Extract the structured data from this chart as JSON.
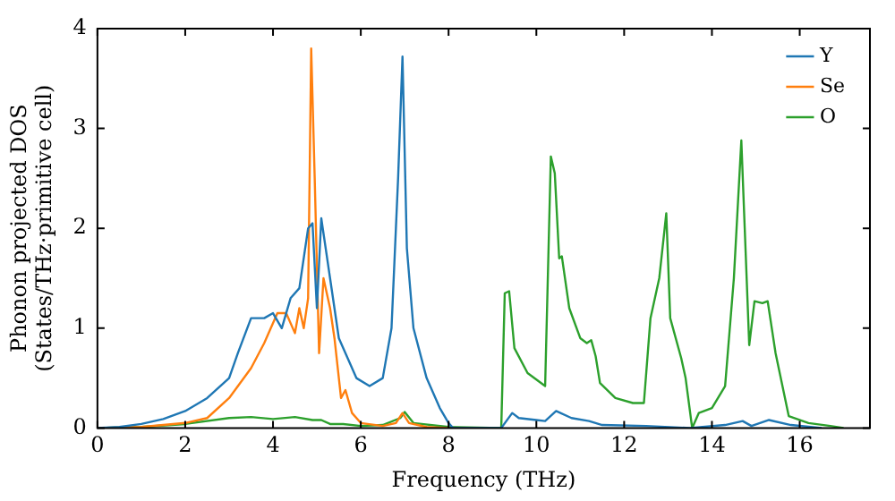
{
  "chart_data": {
    "type": "line",
    "xlabel": "Frequency (THz)",
    "ylabel": "Phonon projected DOS\n(States/THz·primitive cell)",
    "xlim": [
      0,
      17.6
    ],
    "xticks": [
      0,
      2,
      4,
      6,
      8,
      10,
      12,
      14,
      16
    ],
    "ylim": [
      0,
      4
    ],
    "yticks": [
      0,
      1,
      2,
      3,
      4
    ],
    "grid": false,
    "legend": "top right",
    "marker": "none",
    "line_style": "solid",
    "series": [
      {
        "name": "Y",
        "color": "#1f77b4",
        "x": [
          0,
          0.5,
          1,
          1.5,
          2,
          2.5,
          3,
          3.2,
          3.5,
          3.8,
          4,
          4.2,
          4.4,
          4.6,
          4.8,
          4.9,
          5.0,
          5.1,
          5.3,
          5.5,
          5.7,
          5.9,
          6.2,
          6.5,
          6.7,
          6.85,
          6.95,
          7.05,
          7.2,
          7.5,
          7.8,
          8.0,
          8.1,
          9.2,
          9.45,
          9.6,
          10,
          10.2,
          10.45,
          10.8,
          11.2,
          11.5,
          12.5,
          13.5,
          14.3,
          14.7,
          14.9,
          15.3,
          15.8,
          16.5
        ],
        "values": [
          0,
          0.01,
          0.04,
          0.09,
          0.17,
          0.3,
          0.5,
          0.75,
          1.1,
          1.1,
          1.15,
          1.0,
          1.3,
          1.4,
          2.0,
          2.05,
          1.2,
          2.1,
          1.5,
          0.9,
          0.7,
          0.5,
          0.42,
          0.5,
          1.0,
          2.5,
          3.72,
          1.8,
          1.0,
          0.5,
          0.2,
          0.05,
          0,
          0,
          0.15,
          0.1,
          0.08,
          0.07,
          0.17,
          0.1,
          0.07,
          0.03,
          0.02,
          0,
          0.03,
          0.07,
          0.02,
          0.08,
          0.03,
          0
        ]
      },
      {
        "name": "Se",
        "color": "#ff7f0e",
        "x": [
          0,
          1,
          2,
          2.5,
          3,
          3.5,
          3.8,
          4.1,
          4.3,
          4.5,
          4.6,
          4.7,
          4.8,
          4.87,
          4.95,
          5.05,
          5.15,
          5.3,
          5.4,
          5.55,
          5.65,
          5.8,
          6,
          6.5,
          6.8,
          6.95,
          7.1,
          7.5,
          8
        ],
        "values": [
          0,
          0.01,
          0.05,
          0.1,
          0.3,
          0.6,
          0.85,
          1.15,
          1.15,
          0.95,
          1.2,
          1.0,
          1.3,
          3.8,
          2.5,
          0.75,
          1.5,
          1.2,
          0.9,
          0.3,
          0.38,
          0.15,
          0.05,
          0.02,
          0.05,
          0.15,
          0.05,
          0.01,
          0
        ]
      },
      {
        "name": "O",
        "color": "#2ca02c",
        "x": [
          0,
          1,
          2,
          3,
          3.5,
          4,
          4.5,
          4.9,
          5.1,
          5.3,
          5.6,
          6,
          6.5,
          6.9,
          7.0,
          7.2,
          8,
          9.2,
          9.28,
          9.38,
          9.5,
          9.8,
          10.2,
          10.33,
          10.42,
          10.52,
          10.58,
          10.75,
          11.0,
          11.15,
          11.25,
          11.35,
          11.45,
          11.8,
          12.2,
          12.45,
          12.6,
          12.8,
          12.96,
          13.05,
          13.3,
          13.4,
          13.55,
          13.7,
          14.0,
          14.3,
          14.5,
          14.67,
          14.85,
          14.97,
          15.15,
          15.27,
          15.45,
          15.75,
          16.2,
          16.7,
          17
        ],
        "values": [
          0,
          0.01,
          0.04,
          0.1,
          0.11,
          0.09,
          0.11,
          0.08,
          0.08,
          0.04,
          0.04,
          0.02,
          0.03,
          0.1,
          0.16,
          0.05,
          0.01,
          0,
          1.35,
          1.37,
          0.8,
          0.55,
          0.42,
          2.72,
          2.55,
          1.7,
          1.72,
          1.2,
          0.9,
          0.85,
          0.88,
          0.72,
          0.45,
          0.3,
          0.25,
          0.25,
          1.1,
          1.5,
          2.15,
          1.1,
          0.7,
          0.5,
          0,
          0.15,
          0.2,
          0.42,
          1.5,
          2.88,
          0.83,
          1.27,
          1.25,
          1.27,
          0.75,
          0.12,
          0.05,
          0.02,
          0
        ]
      }
    ]
  }
}
